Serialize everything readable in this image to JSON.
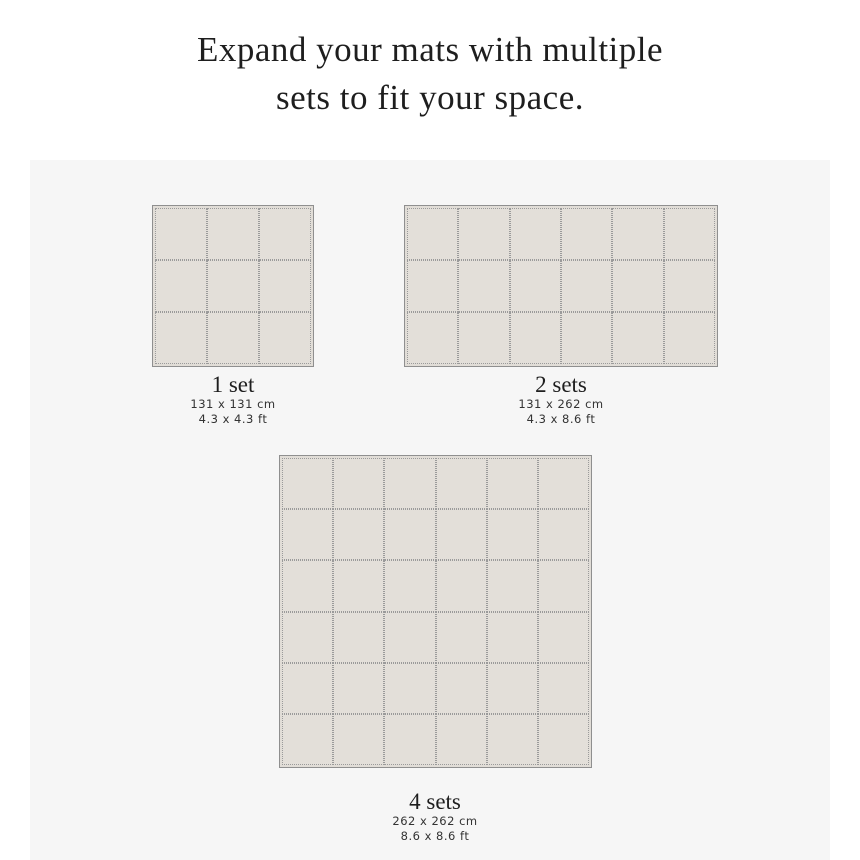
{
  "headline": {
    "line1": "Expand your mats with multiple",
    "line2": "sets to fit your space."
  },
  "colors": {
    "panel": "#f6f6f6",
    "mat": "#e1ddd7",
    "mat_border": "#8f8f8f"
  },
  "mats": [
    {
      "title": "1 set",
      "metric": "131 x 131 cm",
      "imperial": "4.3 x 4.3 ft",
      "rows": 3,
      "cols": 3
    },
    {
      "title": "2 sets",
      "metric": "131 x 262 cm",
      "imperial": "4.3 x 8.6 ft",
      "rows": 3,
      "cols": 6
    },
    {
      "title": "4 sets",
      "metric": "262 x 262 cm",
      "imperial": "8.6 x 8.6 ft",
      "rows": 6,
      "cols": 6
    }
  ]
}
